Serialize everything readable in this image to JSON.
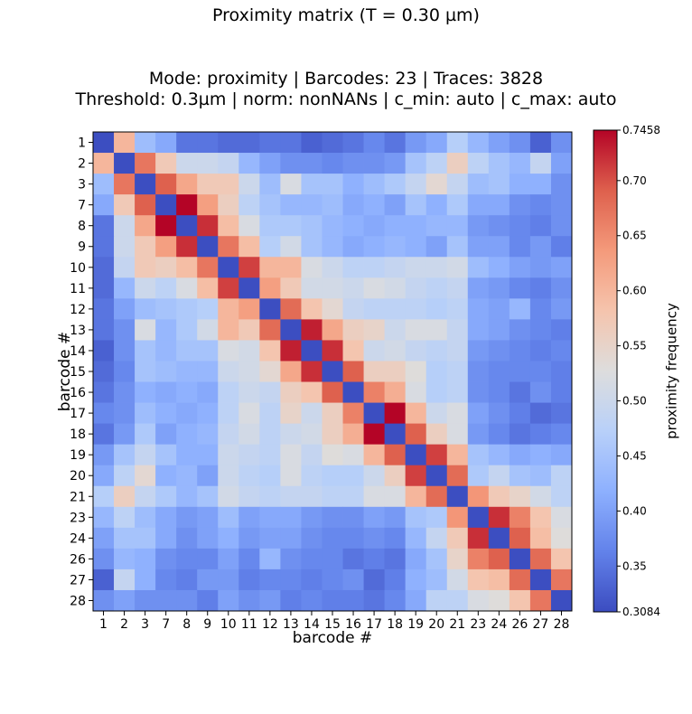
{
  "figure": {
    "suptitle": "Proximity matrix (T = 0.30 µm)",
    "subtitle_line1": "Mode: proximity | Barcodes: 23 | Traces: 3828",
    "subtitle_line2": "Threshold: 0.3µm | norm: nonNANs | c_min: auto | c_max: auto"
  },
  "chart_data": {
    "type": "heatmap",
    "title": "Mode: proximity | Barcodes: 23 | Traces: 3828 / Threshold: 0.3µm | norm: nonNANs | c_min: auto | c_max: auto",
    "xlabel": "barcode #",
    "ylabel": "barcode #",
    "x_categories": [
      "1",
      "2",
      "3",
      "7",
      "8",
      "9",
      "10",
      "11",
      "12",
      "13",
      "14",
      "15",
      "16",
      "17",
      "18",
      "19",
      "20",
      "21",
      "23",
      "24",
      "26",
      "27",
      "28"
    ],
    "y_categories": [
      "1",
      "2",
      "3",
      "7",
      "8",
      "9",
      "10",
      "11",
      "12",
      "13",
      "14",
      "15",
      "16",
      "17",
      "18",
      "19",
      "20",
      "21",
      "23",
      "24",
      "26",
      "27",
      "28"
    ],
    "colorbar": {
      "label": "proximity frequency",
      "min": 0.3084,
      "max": 0.7458,
      "min_label": "0.3084",
      "max_label": "0.7458",
      "ticks": [
        0.35,
        0.4,
        0.45,
        0.5,
        0.55,
        0.6,
        0.65,
        0.7
      ],
      "tick_labels": [
        "0.35",
        "0.40",
        "0.45",
        "0.50",
        "0.55",
        "0.60",
        "0.65",
        "0.70"
      ],
      "colormap": "coolwarm"
    },
    "values": [
      [
        0.31,
        0.6,
        0.44,
        0.41,
        0.35,
        0.35,
        0.34,
        0.34,
        0.35,
        0.35,
        0.33,
        0.34,
        0.35,
        0.37,
        0.35,
        0.39,
        0.41,
        0.47,
        0.43,
        0.4,
        0.38,
        0.33,
        0.38
      ],
      [
        0.6,
        0.31,
        0.67,
        0.57,
        0.5,
        0.5,
        0.49,
        0.43,
        0.4,
        0.38,
        0.38,
        0.37,
        0.38,
        0.38,
        0.39,
        0.45,
        0.48,
        0.56,
        0.48,
        0.45,
        0.43,
        0.49,
        0.4
      ],
      [
        0.44,
        0.67,
        0.31,
        0.69,
        0.62,
        0.57,
        0.57,
        0.5,
        0.44,
        0.52,
        0.45,
        0.45,
        0.42,
        0.44,
        0.46,
        0.49,
        0.54,
        0.49,
        0.44,
        0.45,
        0.42,
        0.42,
        0.38
      ],
      [
        0.41,
        0.57,
        0.69,
        0.31,
        0.75,
        0.63,
        0.56,
        0.48,
        0.45,
        0.43,
        0.43,
        0.44,
        0.41,
        0.42,
        0.4,
        0.45,
        0.42,
        0.46,
        0.41,
        0.41,
        0.38,
        0.37,
        0.38
      ],
      [
        0.35,
        0.5,
        0.62,
        0.75,
        0.31,
        0.72,
        0.59,
        0.52,
        0.46,
        0.46,
        0.45,
        0.43,
        0.42,
        0.41,
        0.42,
        0.42,
        0.43,
        0.43,
        0.39,
        0.38,
        0.37,
        0.36,
        0.38
      ],
      [
        0.35,
        0.5,
        0.57,
        0.63,
        0.72,
        0.31,
        0.67,
        0.59,
        0.47,
        0.51,
        0.45,
        0.43,
        0.41,
        0.42,
        0.43,
        0.42,
        0.4,
        0.45,
        0.4,
        0.4,
        0.37,
        0.39,
        0.36
      ],
      [
        0.34,
        0.49,
        0.57,
        0.56,
        0.59,
        0.67,
        0.31,
        0.71,
        0.6,
        0.6,
        0.52,
        0.5,
        0.48,
        0.48,
        0.49,
        0.5,
        0.5,
        0.51,
        0.44,
        0.42,
        0.4,
        0.39,
        0.4
      ],
      [
        0.34,
        0.43,
        0.5,
        0.48,
        0.52,
        0.59,
        0.71,
        0.31,
        0.63,
        0.57,
        0.51,
        0.51,
        0.5,
        0.52,
        0.51,
        0.49,
        0.48,
        0.49,
        0.4,
        0.39,
        0.37,
        0.36,
        0.38
      ],
      [
        0.35,
        0.4,
        0.44,
        0.45,
        0.46,
        0.47,
        0.6,
        0.63,
        0.31,
        0.68,
        0.58,
        0.54,
        0.49,
        0.48,
        0.48,
        0.48,
        0.47,
        0.48,
        0.41,
        0.4,
        0.43,
        0.37,
        0.39
      ],
      [
        0.35,
        0.38,
        0.52,
        0.43,
        0.46,
        0.51,
        0.6,
        0.57,
        0.68,
        0.31,
        0.73,
        0.62,
        0.56,
        0.55,
        0.5,
        0.52,
        0.52,
        0.49,
        0.41,
        0.4,
        0.38,
        0.37,
        0.36
      ],
      [
        0.33,
        0.38,
        0.45,
        0.43,
        0.45,
        0.45,
        0.52,
        0.51,
        0.58,
        0.73,
        0.31,
        0.72,
        0.58,
        0.5,
        0.51,
        0.49,
        0.48,
        0.49,
        0.39,
        0.38,
        0.37,
        0.36,
        0.37
      ],
      [
        0.34,
        0.37,
        0.45,
        0.44,
        0.43,
        0.43,
        0.5,
        0.51,
        0.54,
        0.62,
        0.72,
        0.31,
        0.69,
        0.56,
        0.56,
        0.53,
        0.47,
        0.48,
        0.38,
        0.37,
        0.37,
        0.37,
        0.36
      ],
      [
        0.35,
        0.38,
        0.42,
        0.41,
        0.42,
        0.41,
        0.48,
        0.5,
        0.49,
        0.56,
        0.58,
        0.69,
        0.31,
        0.66,
        0.61,
        0.52,
        0.47,
        0.48,
        0.38,
        0.37,
        0.35,
        0.38,
        0.36
      ],
      [
        0.37,
        0.38,
        0.44,
        0.42,
        0.41,
        0.42,
        0.48,
        0.52,
        0.48,
        0.55,
        0.5,
        0.56,
        0.66,
        0.31,
        0.75,
        0.6,
        0.5,
        0.52,
        0.4,
        0.38,
        0.36,
        0.34,
        0.35
      ],
      [
        0.35,
        0.39,
        0.46,
        0.4,
        0.42,
        0.43,
        0.49,
        0.51,
        0.48,
        0.5,
        0.51,
        0.56,
        0.61,
        0.75,
        0.31,
        0.69,
        0.56,
        0.52,
        0.39,
        0.37,
        0.35,
        0.36,
        0.37
      ],
      [
        0.39,
        0.45,
        0.49,
        0.45,
        0.42,
        0.42,
        0.5,
        0.49,
        0.48,
        0.52,
        0.49,
        0.53,
        0.52,
        0.6,
        0.69,
        0.31,
        0.71,
        0.6,
        0.45,
        0.43,
        0.41,
        0.42,
        0.41
      ],
      [
        0.41,
        0.48,
        0.54,
        0.42,
        0.43,
        0.4,
        0.5,
        0.48,
        0.47,
        0.52,
        0.48,
        0.47,
        0.47,
        0.5,
        0.56,
        0.71,
        0.31,
        0.68,
        0.46,
        0.49,
        0.45,
        0.44,
        0.48
      ],
      [
        0.47,
        0.56,
        0.49,
        0.46,
        0.43,
        0.45,
        0.51,
        0.49,
        0.48,
        0.49,
        0.49,
        0.48,
        0.48,
        0.52,
        0.52,
        0.6,
        0.68,
        0.31,
        0.64,
        0.57,
        0.55,
        0.51,
        0.48
      ],
      [
        0.43,
        0.48,
        0.44,
        0.41,
        0.39,
        0.4,
        0.44,
        0.4,
        0.41,
        0.41,
        0.39,
        0.38,
        0.38,
        0.4,
        0.39,
        0.45,
        0.46,
        0.64,
        0.31,
        0.72,
        0.66,
        0.58,
        0.52
      ],
      [
        0.4,
        0.45,
        0.45,
        0.41,
        0.38,
        0.4,
        0.42,
        0.39,
        0.4,
        0.4,
        0.38,
        0.37,
        0.37,
        0.38,
        0.37,
        0.43,
        0.49,
        0.57,
        0.72,
        0.31,
        0.69,
        0.59,
        0.53
      ],
      [
        0.38,
        0.43,
        0.42,
        0.38,
        0.37,
        0.37,
        0.4,
        0.37,
        0.43,
        0.38,
        0.37,
        0.37,
        0.35,
        0.36,
        0.35,
        0.41,
        0.45,
        0.55,
        0.66,
        0.69,
        0.31,
        0.68,
        0.58
      ],
      [
        0.33,
        0.49,
        0.42,
        0.37,
        0.36,
        0.39,
        0.39,
        0.36,
        0.37,
        0.37,
        0.36,
        0.37,
        0.38,
        0.34,
        0.36,
        0.42,
        0.44,
        0.51,
        0.58,
        0.59,
        0.68,
        0.31,
        0.67
      ],
      [
        0.38,
        0.4,
        0.38,
        0.38,
        0.38,
        0.36,
        0.4,
        0.38,
        0.39,
        0.36,
        0.37,
        0.36,
        0.36,
        0.35,
        0.37,
        0.41,
        0.48,
        0.48,
        0.52,
        0.53,
        0.58,
        0.67,
        0.31
      ]
    ]
  }
}
